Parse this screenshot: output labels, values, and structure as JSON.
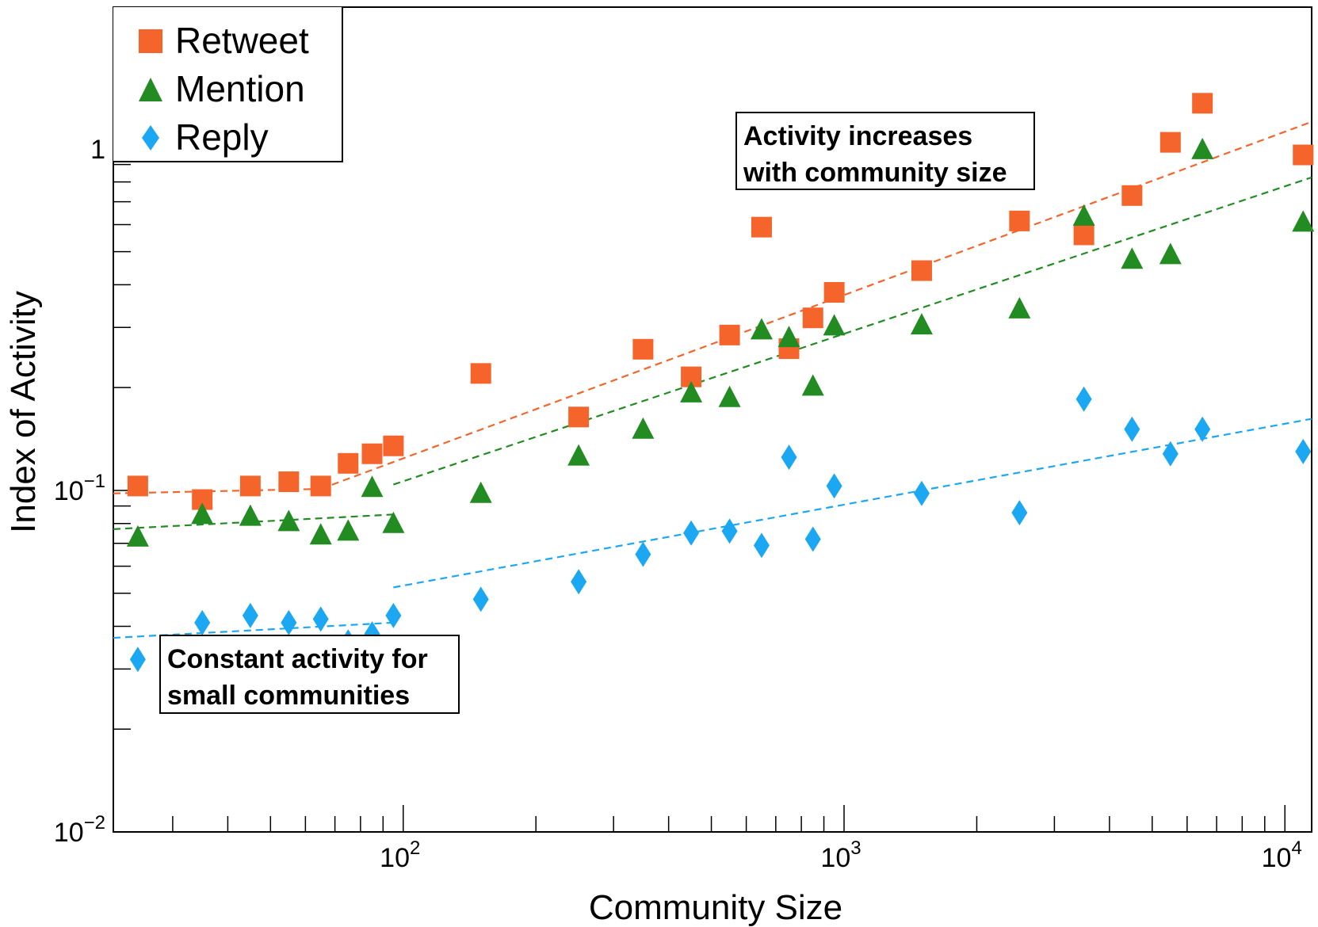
{
  "chart_data": {
    "type": "scatter",
    "xlabel": "Community Size",
    "ylabel": "Index of Activity",
    "xscale": "log",
    "yscale": "log",
    "xlim": [
      22,
      11500
    ],
    "ylim": [
      0.01,
      2.6
    ],
    "x_tick_labels": [
      {
        "value": 100,
        "base": "10",
        "exp": "2"
      },
      {
        "value": 1000,
        "base": "10",
        "exp": "3"
      },
      {
        "value": 10000,
        "base": "10",
        "exp": "4"
      }
    ],
    "y_tick_labels": [
      {
        "value": 0.01,
        "base": "10",
        "exp": "−2"
      },
      {
        "value": 0.1,
        "base": "10",
        "exp": "−1"
      },
      {
        "value": 1,
        "base": "1",
        "exp": ""
      }
    ],
    "legend_position": "top-left",
    "series": [
      {
        "name": "Retweet",
        "marker": "square",
        "color": "#f4642b",
        "x": [
          25,
          35,
          45,
          55,
          65,
          75,
          85,
          95,
          150,
          250,
          350,
          450,
          550,
          650,
          750,
          850,
          950,
          1500,
          2500,
          3500,
          4500,
          5500,
          6500,
          11000
        ],
        "y": [
          0.103,
          0.094,
          0.103,
          0.106,
          0.103,
          0.12,
          0.128,
          0.135,
          0.22,
          0.164,
          0.259,
          0.215,
          0.285,
          0.59,
          0.26,
          0.32,
          0.38,
          0.44,
          0.615,
          0.56,
          0.73,
          1.045,
          1.36,
          0.96
        ]
      },
      {
        "name": "Mention",
        "marker": "triangle",
        "color": "#228b22",
        "x": [
          25,
          35,
          45,
          55,
          65,
          75,
          85,
          95,
          150,
          250,
          350,
          450,
          550,
          650,
          750,
          850,
          950,
          1500,
          2500,
          3500,
          4500,
          5500,
          6500,
          11000
        ],
        "y": [
          0.073,
          0.085,
          0.084,
          0.081,
          0.074,
          0.076,
          0.102,
          0.08,
          0.098,
          0.126,
          0.151,
          0.193,
          0.187,
          0.295,
          0.28,
          0.202,
          0.303,
          0.305,
          0.34,
          0.635,
          0.475,
          0.49,
          0.995,
          0.61
        ]
      },
      {
        "name": "Reply",
        "marker": "diamond",
        "color": "#1ba7f2",
        "x": [
          25,
          35,
          45,
          55,
          65,
          75,
          85,
          95,
          150,
          250,
          350,
          450,
          550,
          650,
          750,
          850,
          950,
          1500,
          2500,
          3500,
          4500,
          5500,
          6500,
          11000
        ],
        "y": [
          0.032,
          0.041,
          0.043,
          0.041,
          0.042,
          0.036,
          0.038,
          0.043,
          0.048,
          0.054,
          0.065,
          0.075,
          0.076,
          0.069,
          0.125,
          0.072,
          0.103,
          0.098,
          0.086,
          0.185,
          0.151,
          0.128,
          0.151,
          0.13
        ]
      }
    ],
    "fits": [
      {
        "series": "Retweet",
        "color": "#f4642b",
        "segments": [
          {
            "x": [
              22,
              65
            ],
            "y": [
              0.098,
              0.101
            ]
          },
          {
            "x": [
              65,
              11500
            ],
            "y": [
              0.101,
              1.2
            ]
          }
        ]
      },
      {
        "series": "Mention",
        "color": "#228b22",
        "segments": [
          {
            "x": [
              22,
              95
            ],
            "y": [
              0.077,
              0.085
            ]
          },
          {
            "x": [
              95,
              11500
            ],
            "y": [
              0.104,
              0.825
            ]
          }
        ]
      },
      {
        "series": "Reply",
        "color": "#1ba7f2",
        "segments": [
          {
            "x": [
              22,
              95
            ],
            "y": [
              0.037,
              0.041
            ]
          },
          {
            "x": [
              95,
              11500
            ],
            "y": [
              0.052,
              0.162
            ]
          }
        ]
      }
    ],
    "annotations": [
      {
        "lines": [
          "Activity increases",
          "with community size"
        ]
      },
      {
        "lines": [
          "Constant activity for",
          "small communities"
        ]
      }
    ]
  }
}
